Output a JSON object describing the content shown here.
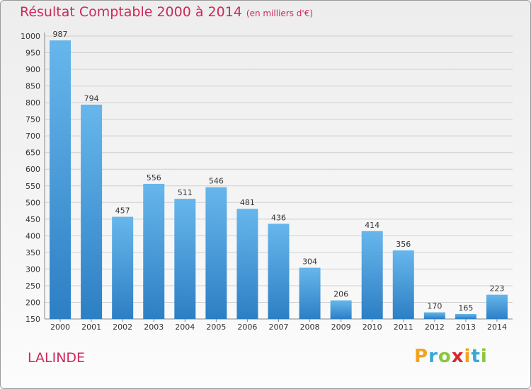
{
  "header": {
    "title": "Résultat Comptable 2000 à 2014",
    "subtitle": "(en milliers d'€)"
  },
  "footer": {
    "place": "LALINDE",
    "brand_letters": [
      "P",
      "r",
      "o",
      "x",
      "i",
      "t",
      "i"
    ],
    "brand_colors": [
      "#f2a321",
      "#3aa6d8",
      "#8cc63f",
      "#d7262f",
      "#f2a321",
      "#3aa6d8",
      "#8cc63f"
    ]
  },
  "colors": {
    "accent": "#cc2a5a",
    "bar_top": "#67b6ec",
    "bar_bottom": "#2d7fc4"
  },
  "chart_data": {
    "type": "bar",
    "title": "Résultat Comptable 2000 à 2014",
    "categories": [
      "2000",
      "2001",
      "2002",
      "2003",
      "2004",
      "2005",
      "2006",
      "2007",
      "2008",
      "2009",
      "2010",
      "2011",
      "2012",
      "2013",
      "2014"
    ],
    "values": [
      987,
      794,
      457,
      556,
      511,
      546,
      481,
      436,
      304,
      206,
      414,
      356,
      170,
      165,
      223
    ],
    "ylim": [
      150,
      1000
    ],
    "yticks": [
      150,
      200,
      250,
      300,
      350,
      400,
      450,
      500,
      550,
      600,
      650,
      700,
      750,
      800,
      850,
      900,
      950,
      1000
    ],
    "xlabel": "",
    "ylabel": "",
    "grid": true
  }
}
